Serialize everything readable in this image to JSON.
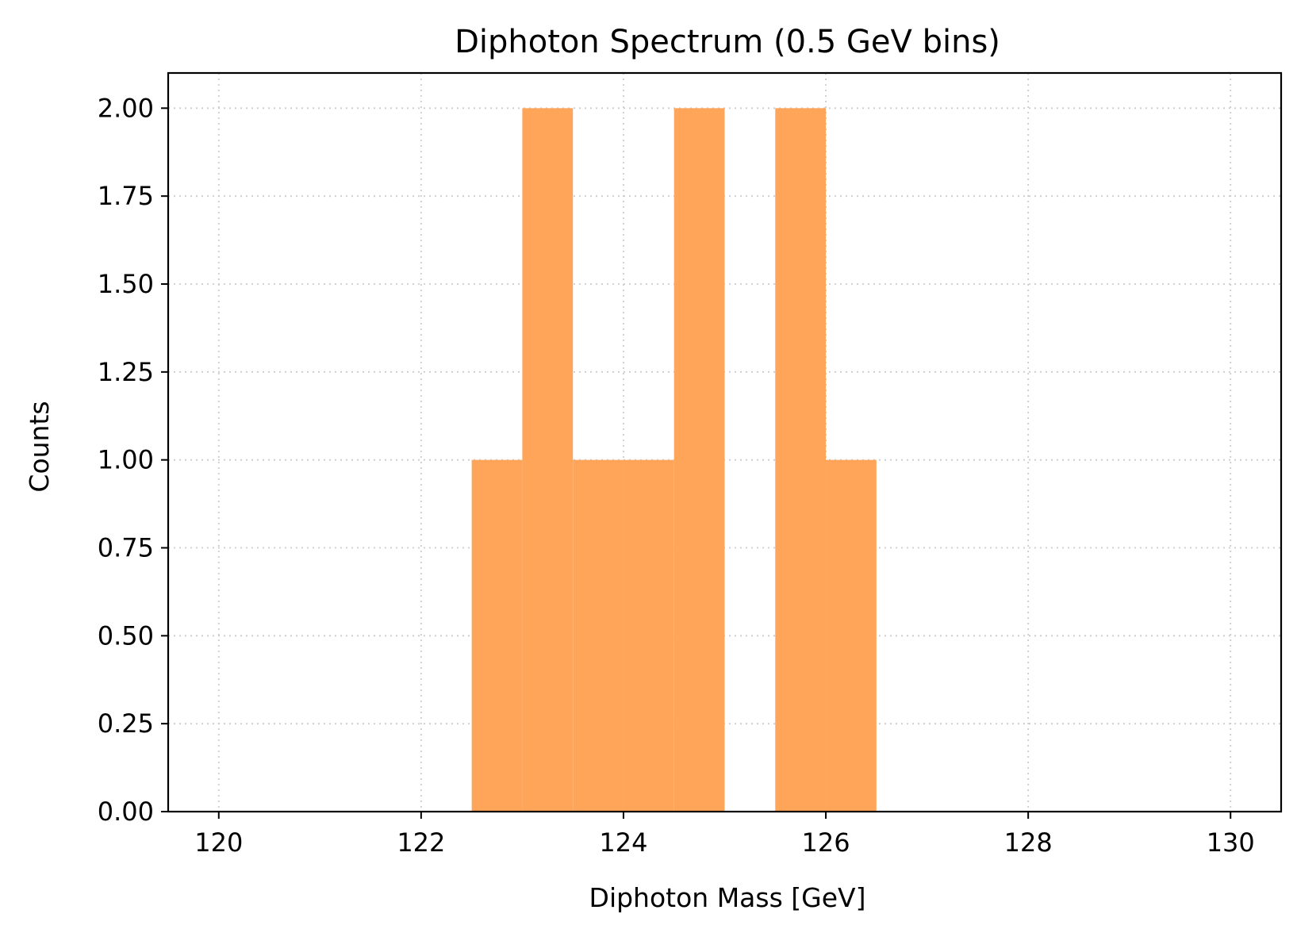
{
  "chart_data": {
    "type": "bar",
    "title": "Diphoton Spectrum (0.5 GeV bins)",
    "xlabel": "Diphoton Mass [GeV]",
    "ylabel": "Counts",
    "xlim": [
      119.5,
      130.5
    ],
    "ylim": [
      0,
      2.1
    ],
    "bin_width": 0.5,
    "bins": [
      {
        "x_start": 122.5,
        "x_end": 123.0,
        "count": 1
      },
      {
        "x_start": 123.0,
        "x_end": 123.5,
        "count": 2
      },
      {
        "x_start": 123.5,
        "x_end": 124.0,
        "count": 1
      },
      {
        "x_start": 124.0,
        "x_end": 124.5,
        "count": 1
      },
      {
        "x_start": 124.5,
        "x_end": 125.0,
        "count": 2
      },
      {
        "x_start": 125.0,
        "x_end": 125.5,
        "count": 0
      },
      {
        "x_start": 125.5,
        "x_end": 126.0,
        "count": 2
      },
      {
        "x_start": 126.0,
        "x_end": 126.5,
        "count": 1
      }
    ],
    "x_ticks": [
      "120",
      "122",
      "124",
      "126",
      "128",
      "130"
    ],
    "x_tick_values": [
      120,
      122,
      124,
      126,
      128,
      130
    ],
    "y_ticks": [
      "0.00",
      "0.25",
      "0.50",
      "0.75",
      "1.00",
      "1.25",
      "1.50",
      "1.75",
      "2.00"
    ],
    "y_tick_values": [
      0,
      0.25,
      0.5,
      0.75,
      1.0,
      1.25,
      1.5,
      1.75,
      2.0
    ],
    "grid": true,
    "grid_style": "dotted",
    "legend": "none",
    "colors": {
      "bar": "#fea55a",
      "grid": "#cccccc",
      "axes": "#000000"
    }
  }
}
